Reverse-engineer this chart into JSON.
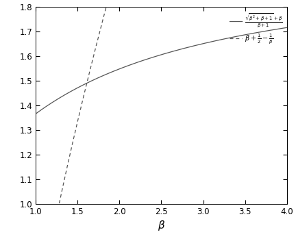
{
  "xlabel": "$\\beta$",
  "xlim": [
    1,
    4
  ],
  "ylim": [
    1.0,
    1.8
  ],
  "xticks": [
    1,
    1.5,
    2,
    2.5,
    3,
    3.5,
    4
  ],
  "yticks": [
    1.0,
    1.1,
    1.2,
    1.3,
    1.4,
    1.5,
    1.6,
    1.7,
    1.8
  ],
  "legend_solid": "$\\frac{\\sqrt{\\beta^2+\\beta+1}+\\beta}{\\beta+1}$",
  "legend_dashed": "$\\beta+\\frac{1}{2}-\\frac{1}{\\beta}$",
  "line_color": "#555555",
  "background_color": "#ffffff",
  "n_points": 500
}
